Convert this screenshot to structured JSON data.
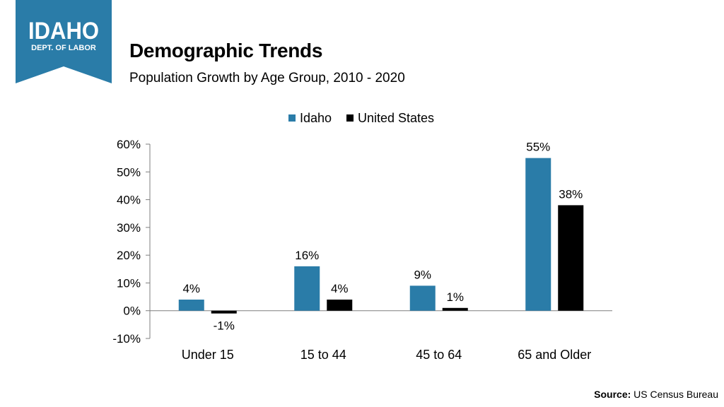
{
  "logo": {
    "line1": "IDAHO",
    "line2": "DEPT. OF LABOR"
  },
  "header": {
    "title": "Demographic Trends",
    "subtitle": "Population Growth by Age Group, 2010 - 2020"
  },
  "colors": {
    "idaho": "#2a7ca8",
    "us": "#000000",
    "logo_bg": "#2a7ca8"
  },
  "chart_data": {
    "type": "bar",
    "title": "Population Growth by Age Group, 2010 - 2020",
    "categories": [
      "Under 15",
      "15 to 44",
      "45 to 64",
      "65 and Older"
    ],
    "series": [
      {
        "name": "Idaho",
        "values": [
          4,
          16,
          9,
          55
        ],
        "labels": [
          "4%",
          "16%",
          "9%",
          "55%"
        ]
      },
      {
        "name": "United States",
        "values": [
          -1,
          4,
          1,
          38
        ],
        "labels": [
          "-1%",
          "4%",
          "1%",
          "38%"
        ]
      }
    ],
    "ylim": [
      -10,
      60
    ],
    "yticks": [
      60,
      50,
      40,
      30,
      20,
      10,
      0,
      -10
    ],
    "ytick_labels": [
      "60%",
      "50%",
      "40%",
      "30%",
      "20%",
      "10%",
      "0%",
      "-10%"
    ],
    "xlabel": "",
    "ylabel": "",
    "legend": "top-center",
    "grid": false
  },
  "source": {
    "label": "Source:",
    "text": "US Census Bureau"
  }
}
